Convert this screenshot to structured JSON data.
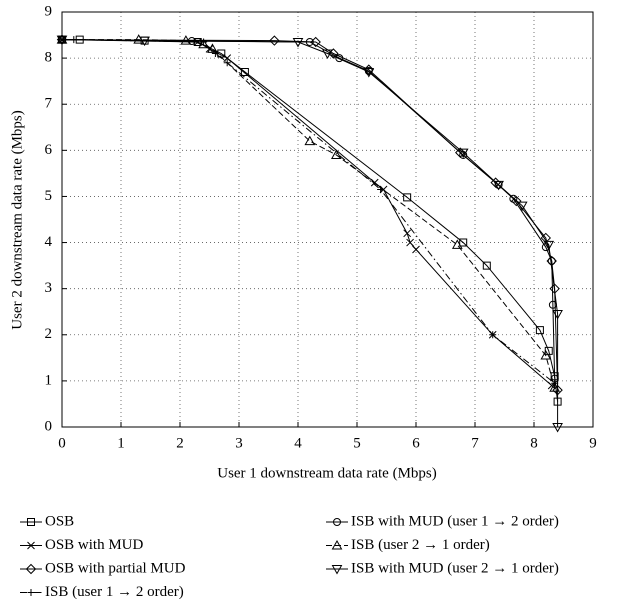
{
  "chart_data": {
    "type": "line",
    "xlabel": "User 1 downstream data rate (Mbps)",
    "ylabel": "User 2 downstream data rate (Mbps)",
    "xlim": [
      0,
      9
    ],
    "ylim": [
      0,
      9
    ],
    "xticks": [
      0,
      1,
      2,
      3,
      4,
      5,
      6,
      7,
      8,
      9
    ],
    "yticks": [
      0,
      1,
      2,
      3,
      4,
      5,
      6,
      7,
      8,
      9
    ],
    "grid": true,
    "series": [
      {
        "name": "OSB",
        "color": "#000000",
        "marker": "square",
        "dash": "solid",
        "x": [
          0,
          0.3,
          1.4,
          2.3,
          2.7,
          3.1,
          5.85,
          6.8,
          7.2,
          8.1,
          8.25,
          8.35,
          8.4
        ],
        "values": [
          8.4,
          8.4,
          8.38,
          8.35,
          8.1,
          7.7,
          4.98,
          4.0,
          3.5,
          2.1,
          1.65,
          1.1,
          0.55
        ]
      },
      {
        "name": "ISB with MUD (user 1 → 2 order)",
        "color": "#000000",
        "marker": "circle",
        "dash": "solid",
        "x": [
          0,
          2.2,
          4.2,
          4.7,
          5.2,
          6.8,
          7.4,
          7.65,
          8.2,
          8.3,
          8.32,
          8.35
        ],
        "values": [
          8.4,
          8.37,
          8.35,
          8.0,
          7.72,
          5.9,
          5.25,
          4.95,
          3.9,
          3.6,
          2.65,
          1.05
        ]
      },
      {
        "name": "OSB with MUD",
        "color": "#000000",
        "marker": "x",
        "dash": "solid",
        "x": [
          0,
          2.3,
          2.5,
          2.8,
          5.3,
          5.45,
          5.85,
          5.9,
          6.0,
          7.3,
          8.3
        ],
        "values": [
          8.4,
          8.35,
          8.2,
          8.0,
          5.3,
          5.15,
          4.2,
          4.0,
          3.85,
          2.0,
          0.9
        ]
      },
      {
        "name": "ISB (user 2 → 1 order)",
        "color": "#000000",
        "marker": "triangle",
        "dash": "dashed",
        "x": [
          0,
          1.3,
          2.1,
          2.4,
          2.55,
          4.2,
          4.65,
          6.7,
          8.2,
          8.35
        ],
        "values": [
          8.4,
          8.4,
          8.38,
          8.3,
          8.2,
          6.2,
          5.9,
          3.95,
          1.55,
          0.85
        ]
      },
      {
        "name": "OSB with partial MUD",
        "color": "#000000",
        "marker": "diamond",
        "dash": "solid",
        "x": [
          0,
          3.6,
          4.3,
          4.6,
          5.2,
          6.75,
          7.35,
          7.7,
          8.2,
          8.3,
          8.35,
          8.4
        ],
        "values": [
          8.4,
          8.38,
          8.35,
          8.1,
          7.75,
          5.95,
          5.3,
          4.9,
          4.1,
          3.6,
          3.0,
          0.8
        ]
      },
      {
        "name": "ISB with MUD (user 2 → 1 order)",
        "color": "#000000",
        "marker": "triangle-down",
        "dash": "solid",
        "x": [
          0,
          1.4,
          4.0,
          4.5,
          5.2,
          6.8,
          7.4,
          7.8,
          8.25,
          8.4,
          8.4
        ],
        "values": [
          8.4,
          8.38,
          8.35,
          8.1,
          7.7,
          5.95,
          5.25,
          4.8,
          3.95,
          2.45,
          0
        ]
      },
      {
        "name": "ISB (user 1 → 2 order)",
        "color": "#000000",
        "marker": "plus",
        "dash": "dashdot",
        "x": [
          0,
          0.2,
          2.4,
          2.6,
          2.8,
          5.4,
          7.3,
          8.35
        ],
        "values": [
          8.4,
          8.4,
          8.35,
          8.1,
          7.9,
          5.15,
          2.0,
          0.95
        ]
      }
    ]
  }
}
